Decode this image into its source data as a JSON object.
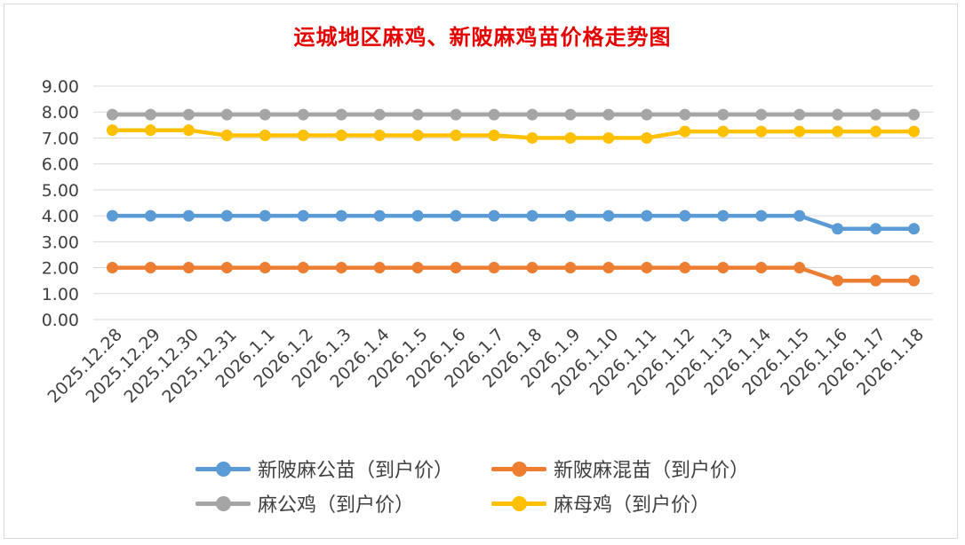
{
  "chart_data": {
    "type": "line",
    "title": "运城地区麻鸡、新陂麻鸡苗价格走势图",
    "xlabel": "",
    "ylabel": "",
    "ylim": [
      0,
      9
    ],
    "yticks": [
      "0.00",
      "1.00",
      "2.00",
      "3.00",
      "4.00",
      "5.00",
      "6.00",
      "7.00",
      "8.00",
      "9.00"
    ],
    "grid": true,
    "legend_position": "bottom",
    "categories": [
      "2025.12.28",
      "2025.12.29",
      "2025.12.30",
      "2025.12.31",
      "2026.1.1",
      "2026.1.2",
      "2026.1.3",
      "2026.1.4",
      "2026.1.5",
      "2026.1.6",
      "2026.1.7",
      "2026.1.8",
      "2026.1.9",
      "2026.1.10",
      "2026.1.11",
      "2026.1.12",
      "2026.1.13",
      "2026.1.14",
      "2026.1.15",
      "2026.1.16",
      "2026.1.17",
      "2026.1.18"
    ],
    "series": [
      {
        "name": "新陂麻公苗（到户价）",
        "color": "#5b9bd5",
        "values": [
          4.0,
          4.0,
          4.0,
          4.0,
          4.0,
          4.0,
          4.0,
          4.0,
          4.0,
          4.0,
          4.0,
          4.0,
          4.0,
          4.0,
          4.0,
          4.0,
          4.0,
          4.0,
          4.0,
          3.5,
          3.5,
          3.5
        ]
      },
      {
        "name": "新陂麻混苗（到户价）",
        "color": "#ed7d31",
        "values": [
          2.0,
          2.0,
          2.0,
          2.0,
          2.0,
          2.0,
          2.0,
          2.0,
          2.0,
          2.0,
          2.0,
          2.0,
          2.0,
          2.0,
          2.0,
          2.0,
          2.0,
          2.0,
          2.0,
          1.5,
          1.5,
          1.5
        ]
      },
      {
        "name": "麻公鸡（到户价）",
        "color": "#a5a5a5",
        "values": [
          7.9,
          7.9,
          7.9,
          7.9,
          7.9,
          7.9,
          7.9,
          7.9,
          7.9,
          7.9,
          7.9,
          7.9,
          7.9,
          7.9,
          7.9,
          7.9,
          7.9,
          7.9,
          7.9,
          7.9,
          7.9,
          7.9
        ]
      },
      {
        "name": "麻母鸡（到户价）",
        "color": "#ffc000",
        "values": [
          7.3,
          7.3,
          7.3,
          7.1,
          7.1,
          7.1,
          7.1,
          7.1,
          7.1,
          7.1,
          7.1,
          7.0,
          7.0,
          7.0,
          7.0,
          7.25,
          7.25,
          7.25,
          7.25,
          7.25,
          7.25,
          7.25
        ]
      }
    ]
  }
}
